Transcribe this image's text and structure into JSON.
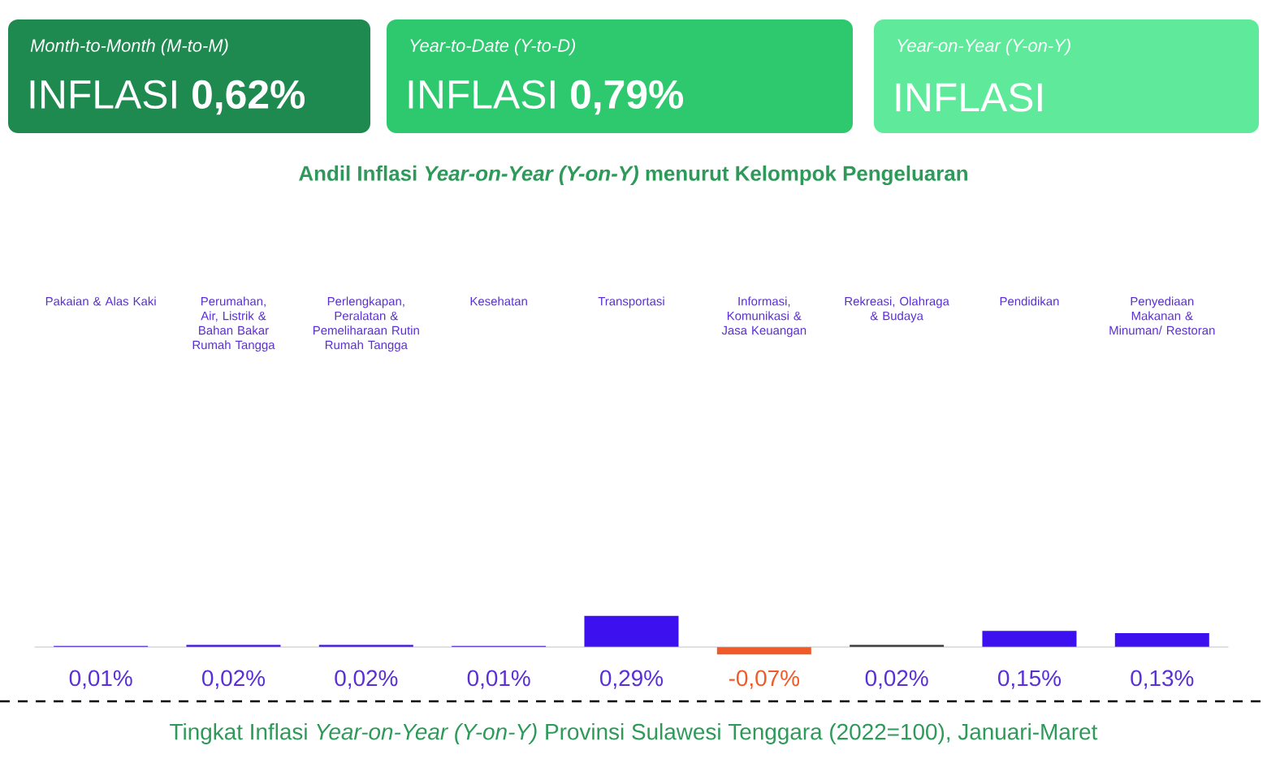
{
  "chart_data": {
    "type": "bar",
    "title": "Andil Inflasi *Year-on-Year (Y-on-Y)* menurut Kelompok Pengeluaran",
    "categories": [
      "Pakaian & Alas Kaki",
      "Perumahan, Air, Listrik & Bahan Bakar Rumah Tangga",
      "Perlengkapan, Peralatan & Pemeliharaan Rutin Rumah Tangga",
      "Kesehatan",
      "Transportasi",
      "Informasi, Komunikasi & Jasa Keuangan",
      "Rekreasi, Olahraga & Budaya",
      "Pendidikan",
      "Penyediaan Makanan & Minuman/ Restoran"
    ],
    "values": [
      0.01,
      0.02,
      0.02,
      0.01,
      0.29,
      -0.07,
      0.02,
      0.15,
      0.13
    ],
    "value_labels": [
      "0,01%",
      "0,02%",
      "0,02%",
      "0,01%",
      "0,29%",
      "-0,07%",
      "0,02%",
      "0,15%",
      "0,13%"
    ],
    "colors": [
      "#3d10f0",
      "#3d10f0",
      "#3d10f0",
      "#3d10f0",
      "#3d10f0",
      "#f05a28",
      "#333333",
      "#3d10f0",
      "#3d10f0"
    ],
    "annotations": [
      "Month-to-Month (M-to-M)",
      "INFLASI **0,62%**",
      "Year-to-Date (Y-to-D)",
      "INFLASI **0,79%**",
      "Year-on-Year (Y-on-Y)",
      "INFLASI",
      "Tingkat Inflasi *Year-on-Year (Y-on-Y)* Provinsi Sulawesi Tenggara (2022=100), Januari-Maret"
    ]
  }
}
